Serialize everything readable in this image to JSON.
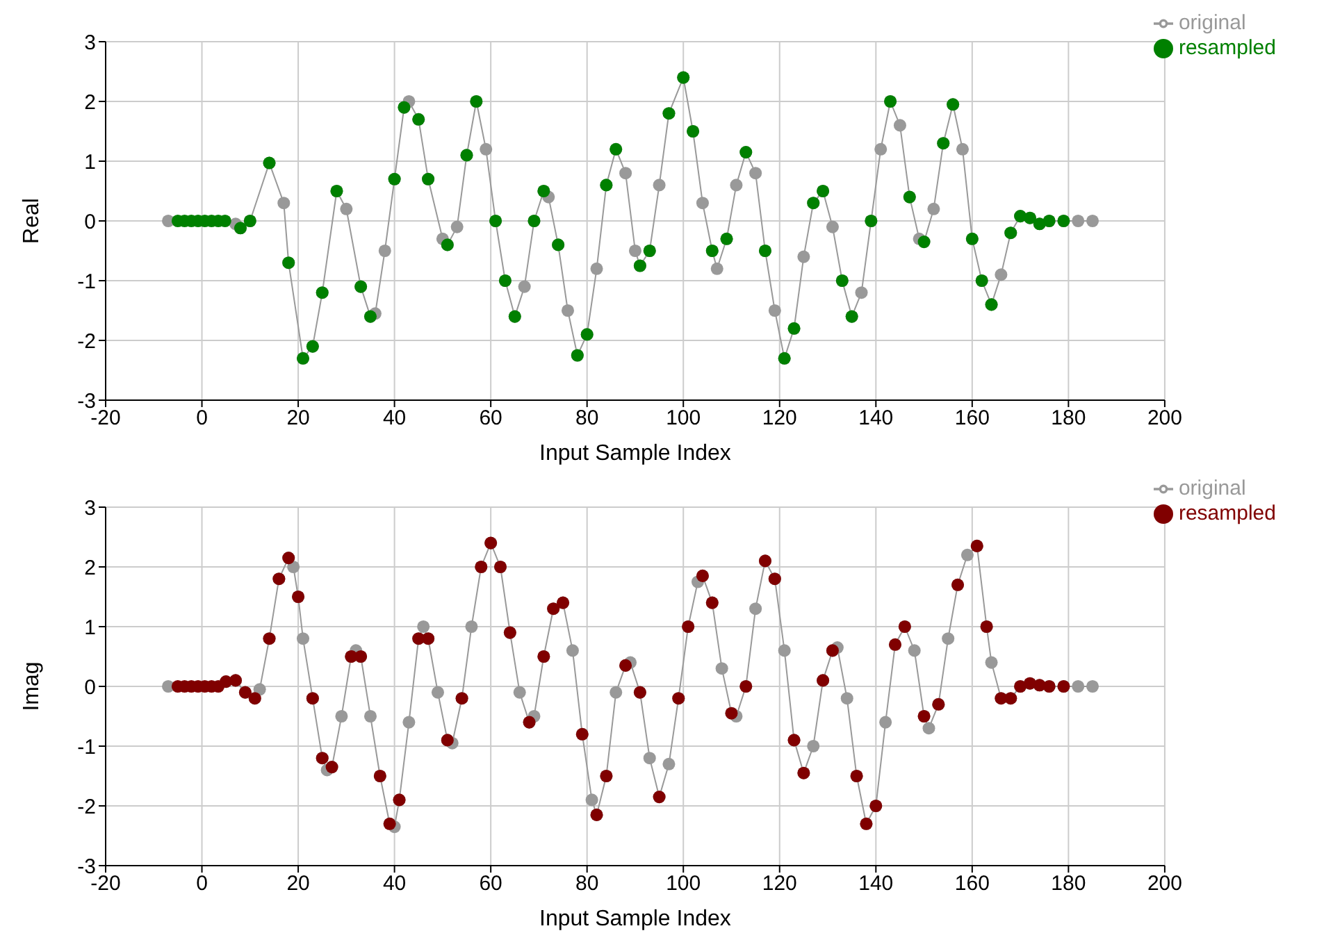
{
  "chart_data": [
    {
      "type": "line",
      "xlabel": "Input Sample Index",
      "ylabel": "Real",
      "xlim": [
        -20,
        200
      ],
      "xticks": [
        -20,
        0,
        20,
        40,
        60,
        80,
        100,
        120,
        140,
        160,
        180,
        200
      ],
      "ylim": [
        -3,
        3
      ],
      "yticks": [
        -3,
        -2,
        -1,
        0,
        1,
        2,
        3
      ],
      "grid": true,
      "legend": "top right",
      "marker": "circle",
      "series": [
        {
          "name": "original",
          "type": "line",
          "color": "#999999",
          "x": [
            -7,
            7,
            8,
            10,
            14,
            17,
            18,
            21,
            23,
            25,
            28,
            30,
            33,
            35,
            36,
            38,
            40,
            42,
            43,
            45,
            47,
            50,
            51,
            53,
            55,
            57,
            59,
            61,
            63,
            65,
            67,
            69,
            71,
            72,
            74,
            76,
            78,
            80,
            82,
            84,
            86,
            88,
            90,
            91,
            93,
            95,
            97,
            100,
            102,
            104,
            106,
            107,
            109,
            111,
            113,
            115,
            117,
            119,
            121,
            123,
            125,
            127,
            129,
            131,
            133,
            135,
            137,
            139,
            141,
            143,
            145,
            147,
            149,
            150,
            152,
            154,
            156,
            158,
            160,
            162,
            164,
            166,
            168,
            170,
            172,
            174,
            176,
            179,
            182,
            185
          ],
          "values": [
            0,
            -0.05,
            -0.12,
            0,
            0.97,
            0.3,
            -0.7,
            -2.3,
            -2.1,
            -1.2,
            0.5,
            0.2,
            -1.1,
            -1.6,
            -1.55,
            -0.5,
            0.7,
            1.9,
            2.0,
            1.7,
            0.7,
            -0.3,
            -0.4,
            -0.1,
            1.1,
            2.0,
            1.2,
            0,
            -1.0,
            -1.6,
            -1.1,
            0,
            0.5,
            0.4,
            -0.4,
            -1.5,
            -2.25,
            -1.9,
            -0.8,
            0.6,
            1.2,
            0.8,
            -0.5,
            -0.75,
            -0.5,
            0.6,
            1.8,
            2.4,
            1.5,
            0.3,
            -0.5,
            -0.8,
            -0.3,
            0.6,
            1.15,
            0.8,
            -0.5,
            -1.5,
            -2.3,
            -1.8,
            -0.6,
            0.3,
            0.5,
            -0.1,
            -1.0,
            -1.6,
            -1.2,
            0,
            1.2,
            2.0,
            1.6,
            0.4,
            -0.3,
            -0.35,
            0.2,
            1.3,
            1.95,
            1.2,
            -0.3,
            -1.0,
            -1.4,
            -0.9,
            -0.2,
            0.08,
            0.05,
            -0.05,
            0,
            0,
            0,
            0
          ]
        },
        {
          "name": "resampled",
          "type": "scatter",
          "color": "#008000",
          "x": [
            -5,
            -3.6,
            -2.2,
            -0.8,
            0.6,
            2,
            3.4,
            4.8,
            8,
            10,
            14,
            18,
            21,
            23,
            25,
            28,
            33,
            35,
            40,
            42,
            45,
            47,
            51,
            55,
            57,
            61,
            63,
            65,
            69,
            71,
            74,
            78,
            80,
            84,
            86,
            91,
            93,
            97,
            100,
            102,
            106,
            109,
            113,
            117,
            121,
            123,
            127,
            129,
            133,
            135,
            139,
            143,
            147,
            150,
            154,
            156,
            160,
            162,
            164,
            168,
            170,
            172,
            174,
            176,
            179
          ],
          "values": [
            0,
            0,
            0,
            0,
            0,
            0,
            0,
            0,
            -0.12,
            0,
            0.97,
            -0.7,
            -2.3,
            -2.1,
            -1.2,
            0.5,
            -1.1,
            -1.6,
            0.7,
            1.9,
            1.7,
            0.7,
            -0.4,
            1.1,
            2.0,
            0,
            -1.0,
            -1.6,
            0,
            0.5,
            -0.4,
            -2.25,
            -1.9,
            0.6,
            1.2,
            -0.75,
            -0.5,
            1.8,
            2.4,
            1.5,
            -0.5,
            -0.3,
            1.15,
            -0.5,
            -2.3,
            -1.8,
            0.3,
            0.5,
            -1.0,
            -1.6,
            0,
            2.0,
            0.4,
            -0.35,
            1.3,
            1.95,
            -0.3,
            -1.0,
            -1.4,
            -0.2,
            0.08,
            0.05,
            -0.05,
            0,
            0
          ]
        }
      ]
    },
    {
      "type": "line",
      "xlabel": "Input Sample Index",
      "ylabel": "Imag",
      "xlim": [
        -20,
        200
      ],
      "xticks": [
        -20,
        0,
        20,
        40,
        60,
        80,
        100,
        120,
        140,
        160,
        180,
        200
      ],
      "ylim": [
        -3,
        3
      ],
      "yticks": [
        -3,
        -2,
        -1,
        0,
        1,
        2,
        3
      ],
      "grid": true,
      "legend": "top right",
      "marker": "circle",
      "series": [
        {
          "name": "original",
          "type": "line",
          "color": "#999999",
          "x": [
            -7,
            5,
            7,
            9,
            11,
            12,
            14,
            16,
            18,
            19,
            20,
            21,
            23,
            25,
            26,
            27,
            29,
            31,
            32,
            33,
            35,
            37,
            39,
            40,
            41,
            43,
            45,
            46,
            47,
            49,
            51,
            52,
            54,
            56,
            58,
            60,
            62,
            64,
            66,
            68,
            69,
            71,
            73,
            75,
            77,
            79,
            81,
            82,
            84,
            86,
            88,
            89,
            91,
            93,
            95,
            97,
            99,
            101,
            103,
            104,
            106,
            108,
            110,
            111,
            113,
            115,
            117,
            119,
            121,
            123,
            125,
            127,
            129,
            131,
            132,
            134,
            136,
            138,
            140,
            142,
            144,
            146,
            148,
            150,
            151,
            153,
            155,
            157,
            159,
            161,
            163,
            164,
            166,
            168,
            170,
            172,
            174,
            176,
            179,
            182,
            185
          ],
          "values": [
            0,
            0.08,
            0.1,
            -0.1,
            -0.2,
            -0.05,
            0.8,
            1.8,
            2.15,
            2.0,
            1.5,
            0.8,
            -0.2,
            -1.2,
            -1.4,
            -1.35,
            -0.5,
            0.5,
            0.6,
            0.5,
            -0.5,
            -1.5,
            -2.3,
            -2.35,
            -1.9,
            -0.6,
            0.8,
            1.0,
            0.8,
            -0.1,
            -0.9,
            -0.95,
            -0.2,
            1.0,
            2.0,
            2.4,
            2.0,
            0.9,
            -0.1,
            -0.6,
            -0.5,
            0.5,
            1.3,
            1.4,
            0.6,
            -0.8,
            -1.9,
            -2.15,
            -1.5,
            -0.1,
            0.35,
            0.4,
            -0.1,
            -1.2,
            -1.85,
            -1.3,
            -0.2,
            1.0,
            1.75,
            1.85,
            1.4,
            0.3,
            -0.45,
            -0.5,
            0,
            1.3,
            2.1,
            1.8,
            0.6,
            -0.9,
            -1.45,
            -1.0,
            0.1,
            0.6,
            0.65,
            -0.2,
            -1.5,
            -2.3,
            -2.0,
            -0.6,
            0.7,
            1.0,
            0.6,
            -0.5,
            -0.7,
            -0.3,
            0.8,
            1.7,
            2.2,
            2.35,
            1.0,
            0.4,
            -0.2,
            -0.2,
            0,
            0.05,
            0.02,
            0,
            0,
            0,
            0
          ]
        },
        {
          "name": "resampled",
          "type": "scatter",
          "color": "#800000",
          "x": [
            -5,
            -3.6,
            -2.2,
            -0.8,
            0.6,
            2,
            3.4,
            5,
            7,
            9,
            11,
            14,
            16,
            18,
            20,
            23,
            25,
            27,
            31,
            33,
            37,
            39,
            41,
            45,
            47,
            51,
            54,
            58,
            60,
            62,
            64,
            68,
            71,
            73,
            75,
            79,
            82,
            84,
            88,
            91,
            95,
            99,
            101,
            104,
            106,
            110,
            113,
            117,
            119,
            123,
            125,
            129,
            131,
            136,
            138,
            140,
            144,
            146,
            150,
            153,
            157,
            161,
            163,
            166,
            168,
            170,
            172,
            174,
            176,
            179
          ],
          "values": [
            0,
            0,
            0,
            0,
            0,
            0,
            0,
            0.08,
            0.1,
            -0.1,
            -0.2,
            0.8,
            1.8,
            2.15,
            1.5,
            -0.2,
            -1.2,
            -1.35,
            0.5,
            0.5,
            -1.5,
            -2.3,
            -1.9,
            0.8,
            0.8,
            -0.9,
            -0.2,
            2.0,
            2.4,
            2.0,
            0.9,
            -0.6,
            0.5,
            1.3,
            1.4,
            -0.8,
            -2.15,
            -1.5,
            0.35,
            -0.1,
            -1.85,
            -0.2,
            1.0,
            1.85,
            1.4,
            -0.45,
            0,
            2.1,
            1.8,
            -0.9,
            -1.45,
            0.1,
            0.6,
            -1.5,
            -2.3,
            -2.0,
            0.7,
            1.0,
            -0.5,
            -0.3,
            1.7,
            2.35,
            1.0,
            -0.2,
            -0.2,
            0,
            0.05,
            0.02,
            0,
            0
          ]
        }
      ]
    }
  ]
}
